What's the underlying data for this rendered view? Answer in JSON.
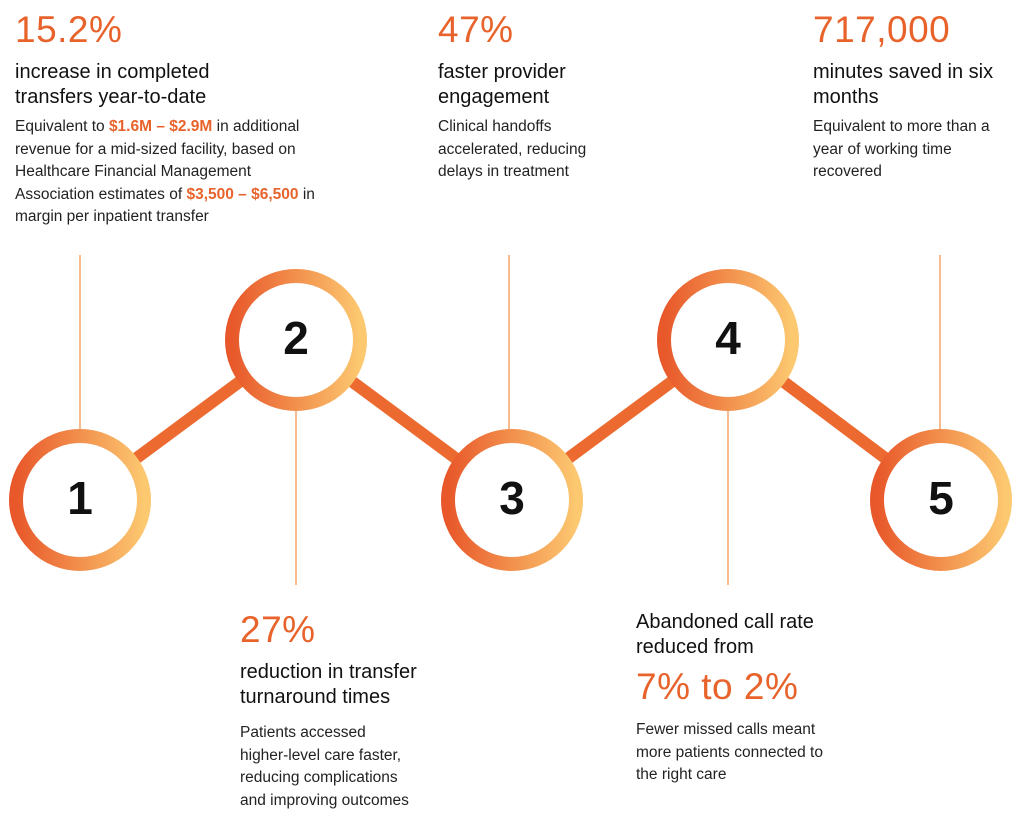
{
  "nodes": [
    {
      "number": "1",
      "stat": "15.2%",
      "heading": "increase in completed transfers year-to-date",
      "body": [
        "Equivalent to ",
        "$1.6M – $2.9M",
        " in additional revenue for a mid-sized facility, based on Healthcare Financial Management Association estimates of ",
        "$3,500 – $6,500",
        " in margin per inpatient transfer"
      ]
    },
    {
      "number": "2",
      "stat": "27%",
      "heading": "reduction in transfer turnaround times",
      "body": [
        "Patients accessed higher-level care faster, reducing complications and improving outcomes"
      ]
    },
    {
      "number": "3",
      "stat": "47%",
      "heading": "faster provider engagement",
      "body": [
        "Clinical handoffs accelerated, reducing delays in treatment"
      ]
    },
    {
      "number": "4",
      "stat": "7% to 2%",
      "heading": "Abandoned call rate reduced from",
      "body": [
        "Fewer missed calls meant more patients connected to the right care"
      ]
    },
    {
      "number": "5",
      "stat": "717,000",
      "heading": "minutes saved in six months",
      "body": [
        "Equivalent to more than a year of working time recovered"
      ]
    }
  ]
}
